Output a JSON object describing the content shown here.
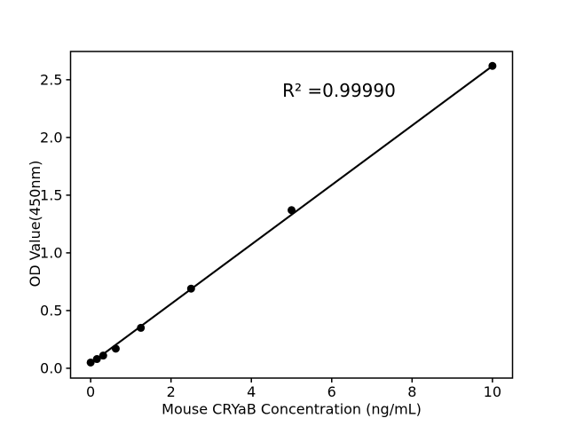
{
  "figure": {
    "background_color": "#ffffff",
    "title": ""
  },
  "chart_data": {
    "type": "scatter",
    "xlabel": "Mouse CRYaB Concentration (ng/mL)",
    "ylabel": "OD Value(450nm)",
    "annotation": "R² =0.99990",
    "x": [
      0,
      0.156,
      0.312,
      0.625,
      1.25,
      2.5,
      5,
      10
    ],
    "y": [
      0.05,
      0.08,
      0.11,
      0.17,
      0.35,
      0.69,
      1.37,
      2.62
    ],
    "fit_line": {
      "slope": 0.2577,
      "intercept": 0.042,
      "x_start": 0,
      "x_end": 10
    },
    "xlim": [
      -0.5,
      10.5
    ],
    "ylim": [
      -0.085,
      2.745
    ],
    "xticks": [
      "0",
      "2",
      "4",
      "6",
      "8",
      "10"
    ],
    "xtick_values": [
      0,
      2,
      4,
      6,
      8,
      10
    ],
    "yticks": [
      "0.0",
      "0.5",
      "1.0",
      "1.5",
      "2.0",
      "2.5"
    ],
    "ytick_values": [
      0,
      0.5,
      1,
      1.5,
      2,
      2.5
    ],
    "grid": false,
    "legend": null,
    "marker_color": "#000000",
    "line_color": "#000000",
    "axis_color": "#000000",
    "text_color": "#000000"
  }
}
